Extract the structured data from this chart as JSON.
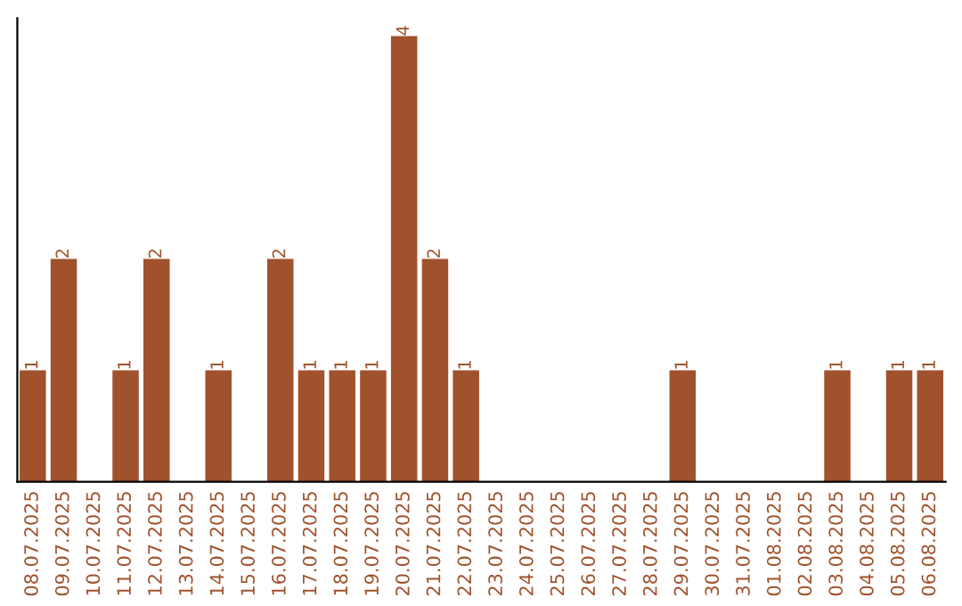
{
  "chart_data": {
    "type": "bar",
    "categories": [
      "08.07.2025",
      "09.07.2025",
      "10.07.2025",
      "11.07.2025",
      "12.07.2025",
      "13.07.2025",
      "14.07.2025",
      "15.07.2025",
      "16.07.2025",
      "17.07.2025",
      "18.07.2025",
      "19.07.2025",
      "20.07.2025",
      "21.07.2025",
      "22.07.2025",
      "23.07.2025",
      "24.07.2025",
      "25.07.2025",
      "26.07.2025",
      "27.07.2025",
      "28.07.2025",
      "29.07.2025",
      "30.07.2025",
      "31.07.2025",
      "01.08.2025",
      "02.08.2025",
      "03.08.2025",
      "04.08.2025",
      "05.08.2025",
      "06.08.2025"
    ],
    "values": [
      1,
      2,
      0,
      1,
      2,
      0,
      1,
      0,
      2,
      1,
      1,
      1,
      4,
      2,
      1,
      0,
      0,
      0,
      0,
      0,
      0,
      1,
      0,
      0,
      0,
      0,
      1,
      0,
      1,
      1
    ],
    "value_labels": [
      "1",
      "2",
      null,
      "1",
      "2",
      null,
      "1",
      null,
      "2",
      "1",
      "1",
      "1",
      "4",
      "2",
      "1",
      null,
      null,
      null,
      null,
      null,
      null,
      "1",
      null,
      null,
      null,
      null,
      "1",
      null,
      "1",
      "1"
    ],
    "color": "#a0522d",
    "tick_labels": "x",
    "grid": false,
    "legend": false
  }
}
